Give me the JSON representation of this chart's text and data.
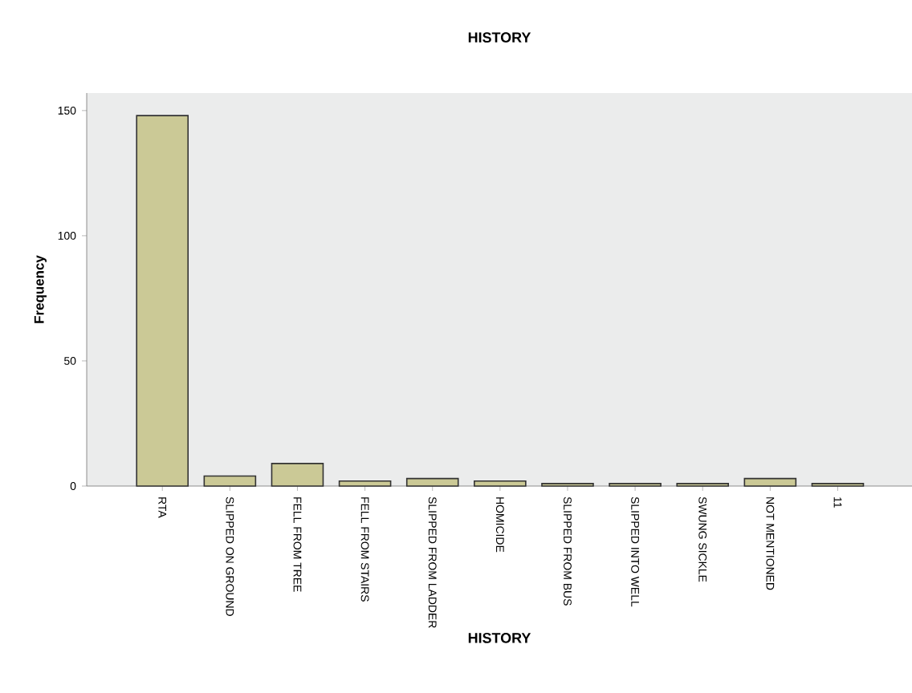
{
  "chart_data": {
    "type": "bar",
    "title": "HISTORY",
    "xlabel": "HISTORY",
    "ylabel": "Frequency",
    "categories": [
      "RTA",
      "SLIPPED ON GROUND",
      "FELL FROM TREE",
      "FELL FROM STAIRS",
      "SLIPPED FROM LADDER",
      "HOMICIDE",
      "SLIPPED FROM BUS",
      "SLIPPED INTO WELL",
      "SWUNG SICKLE",
      "NOT MENTIONED",
      "11"
    ],
    "values": [
      148,
      4,
      9,
      2,
      3,
      2,
      1,
      1,
      1,
      3,
      1
    ],
    "color": "#cbc996",
    "ylim": [
      0,
      157
    ],
    "yticks": [
      0,
      50,
      100,
      150
    ],
    "grid": false
  }
}
